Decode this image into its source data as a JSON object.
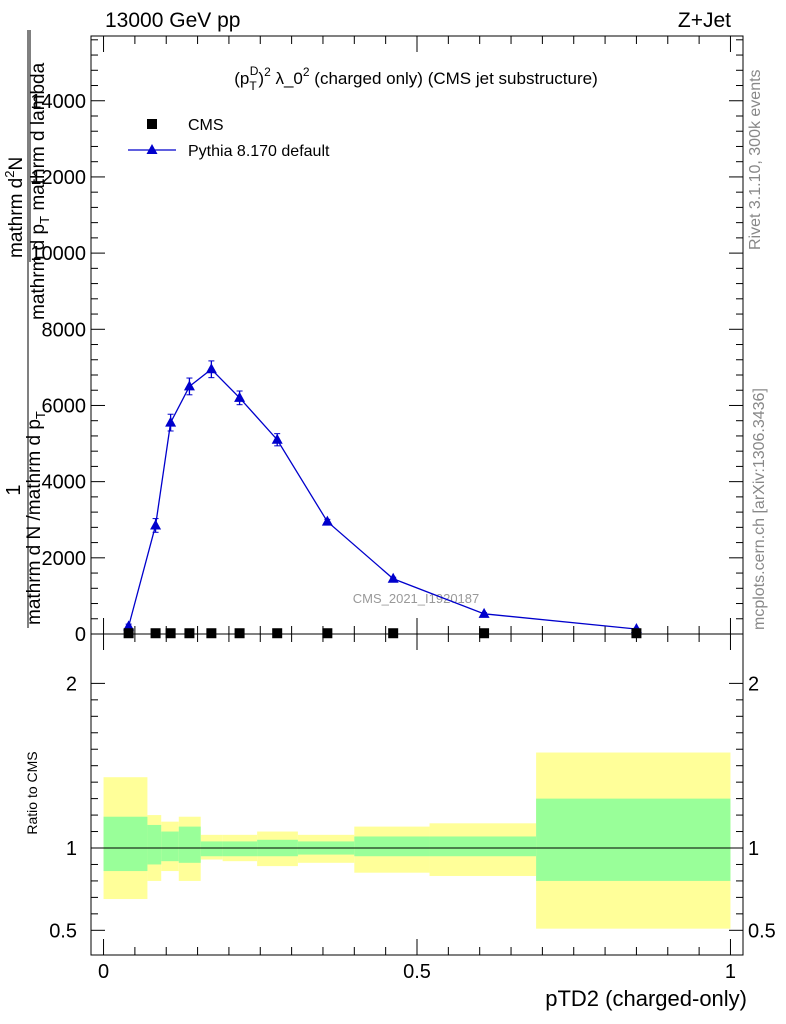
{
  "header": {
    "left": "13000 GeV pp",
    "right": "Z+Jet"
  },
  "side_labels": {
    "rivet": "Rivet 3.1.10,  300k events",
    "mcplots": "mcplots.cern.ch [arXiv:1306.3436]"
  },
  "watermark": "CMS_2021_I1920187",
  "chart_data": [
    {
      "type": "line",
      "title": "(p_T^D)^2 λ_0^2 (charged only) (CMS jet substructure)",
      "title_parts": {
        "p": "(p",
        "T": "T",
        "D": "D",
        "close": ")",
        "sup": "2",
        "rest": " λ_0",
        "rest_sup": "2",
        "tail": " (charged only) (CMS jet substructure)"
      },
      "xlabel": "pTD2 (charged-only)",
      "ylabel_lines": {
        "outer": "1",
        "numerator": "mathrm d N /mathrm d p_T",
        "denominator_top": "mathrm d^2N",
        "denominator": "mathrm d p_T mathrm d lambda"
      },
      "ylabel": {
        "frac_one": "1",
        "left_num": "mathrm d N /mathrm d p",
        "left_num_sub": "T",
        "right_num": "mathrm d",
        "right_num_sup": "2",
        "right_num_end": "N",
        "right_den": "mathrm d p",
        "right_den_sub": "T",
        "right_den_end": " mathrm d lambda"
      },
      "xlim": [
        -0.02,
        1.02
      ],
      "ylim": [
        0,
        15700
      ],
      "yticks": [
        0,
        2000,
        4000,
        6000,
        8000,
        10000,
        12000,
        14000
      ],
      "ytick_labels": [
        "0",
        "2000",
        "4000",
        "6000",
        "8000",
        "10000",
        "12000",
        "14000"
      ],
      "series": [
        {
          "name": "CMS",
          "marker": "square",
          "color": "#000000",
          "x": [
            0.04,
            0.083,
            0.107,
            0.137,
            0.172,
            0.217,
            0.277,
            0.357,
            0.462,
            0.607,
            0.85
          ],
          "values": [
            20,
            20,
            20,
            20,
            20,
            20,
            20,
            20,
            20,
            20,
            20
          ]
        },
        {
          "name": "Pythia 8.170 default",
          "marker": "triangle",
          "color": "#0000cc",
          "x": [
            0.04,
            0.083,
            0.107,
            0.137,
            0.172,
            0.217,
            0.277,
            0.357,
            0.462,
            0.607,
            0.85
          ],
          "values": [
            200,
            2850,
            5550,
            6500,
            6950,
            6200,
            5100,
            2950,
            1450,
            530,
            130
          ],
          "errors": [
            60,
            180,
            220,
            220,
            220,
            180,
            160,
            60,
            40,
            30,
            20
          ]
        }
      ]
    },
    {
      "type": "area",
      "ylabel": "Ratio to CMS",
      "xlim": [
        -0.02,
        1.02
      ],
      "ylim": [
        0.35,
        2.3
      ],
      "yticks": [
        0.5,
        1,
        2
      ],
      "ytick_labels": [
        "0.5",
        "1",
        "2"
      ],
      "xticks": [
        0,
        0.5,
        1
      ],
      "xtick_labels": [
        "0",
        "0.5",
        "1"
      ],
      "reference_line": 1,
      "bands": [
        {
          "x0": 0.0,
          "x1": 0.07,
          "inner": [
            0.86,
            1.19
          ],
          "outer": [
            0.69,
            1.43
          ]
        },
        {
          "x0": 0.07,
          "x1": 0.092,
          "inner": [
            0.9,
            1.14
          ],
          "outer": [
            0.8,
            1.2
          ]
        },
        {
          "x0": 0.092,
          "x1": 0.12,
          "inner": [
            0.92,
            1.1
          ],
          "outer": [
            0.86,
            1.16
          ]
        },
        {
          "x0": 0.12,
          "x1": 0.155,
          "inner": [
            0.91,
            1.13
          ],
          "outer": [
            0.8,
            1.19
          ]
        },
        {
          "x0": 0.155,
          "x1": 0.19,
          "inner": [
            0.95,
            1.04
          ],
          "outer": [
            0.93,
            1.08
          ]
        },
        {
          "x0": 0.19,
          "x1": 0.245,
          "inner": [
            0.95,
            1.04
          ],
          "outer": [
            0.92,
            1.08
          ]
        },
        {
          "x0": 0.245,
          "x1": 0.31,
          "inner": [
            0.95,
            1.05
          ],
          "outer": [
            0.89,
            1.1
          ]
        },
        {
          "x0": 0.31,
          "x1": 0.4,
          "inner": [
            0.96,
            1.04
          ],
          "outer": [
            0.91,
            1.08
          ]
        },
        {
          "x0": 0.4,
          "x1": 0.52,
          "inner": [
            0.95,
            1.07
          ],
          "outer": [
            0.85,
            1.13
          ]
        },
        {
          "x0": 0.52,
          "x1": 0.69,
          "inner": [
            0.95,
            1.07
          ],
          "outer": [
            0.83,
            1.15
          ]
        },
        {
          "x0": 0.69,
          "x1": 1.0,
          "inner": [
            0.8,
            1.3
          ],
          "outer": [
            0.51,
            1.58
          ]
        }
      ],
      "colors": {
        "inner": "#99ff99",
        "outer": "#ffff99"
      }
    }
  ]
}
